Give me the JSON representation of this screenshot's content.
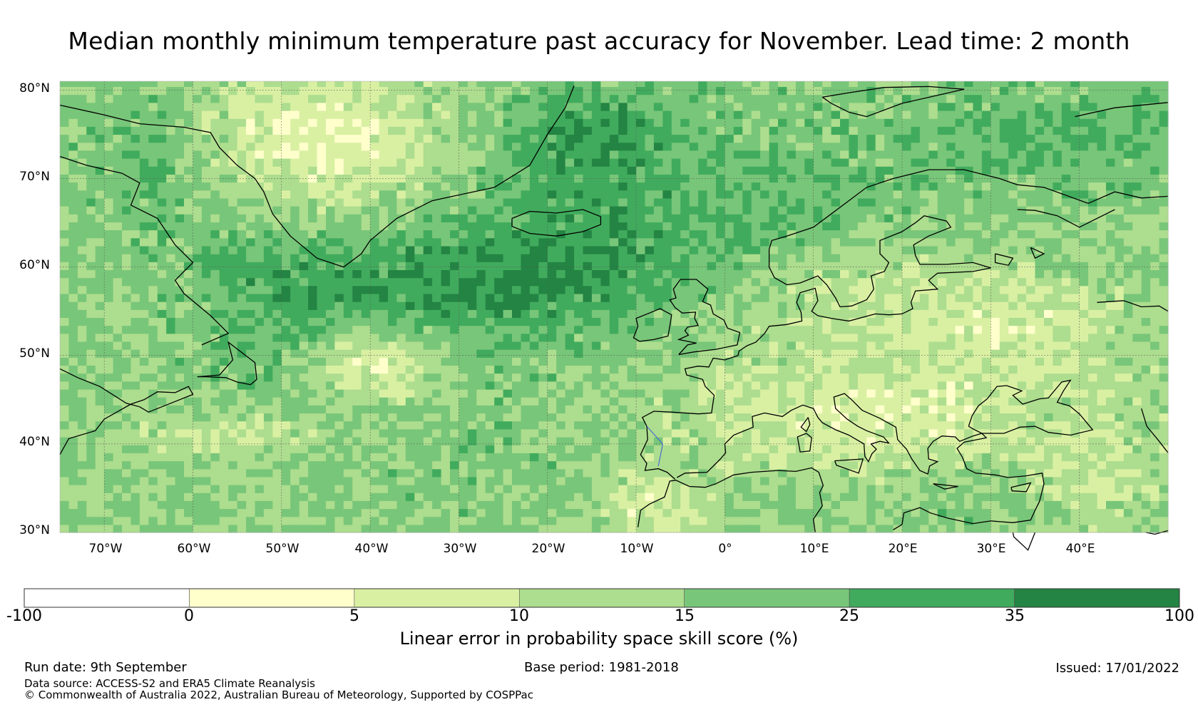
{
  "title": "Median monthly minimum temperature past accuracy for November. Lead time: 2 month",
  "map": {
    "lat_labels": [
      "80°N",
      "70°N",
      "60°N",
      "50°N",
      "40°N",
      "30°N"
    ],
    "lon_labels": [
      "70°W",
      "60°W",
      "50°W",
      "40°W",
      "30°W",
      "20°W",
      "10°W",
      "0°",
      "10°E",
      "20°E",
      "30°E",
      "40°E"
    ],
    "lat_range": [
      30,
      81
    ],
    "lon_range": [
      -75,
      50
    ]
  },
  "colorbar": {
    "title": "Linear error in probability space skill score (%)",
    "ticks": [
      "-100",
      "0",
      "5",
      "10",
      "15",
      "25",
      "35",
      "100"
    ],
    "colors": [
      "#ffffff",
      "#ffffcc",
      "#d9f0a3",
      "#addd8e",
      "#78c679",
      "#41ab5d",
      "#238443"
    ]
  },
  "footer": {
    "run_date": "Run date: 9th September",
    "base_period": "Base period: 1981-2018",
    "issued": "Issued: 17/01/2022",
    "data_source": "Data source: ACCESS-S2 and ERA5 Climate Reanalysis",
    "copyright": "© Commonwealth of Australia 2022, Australian Bureau of Meteorology, Supported by COSPPac"
  }
}
